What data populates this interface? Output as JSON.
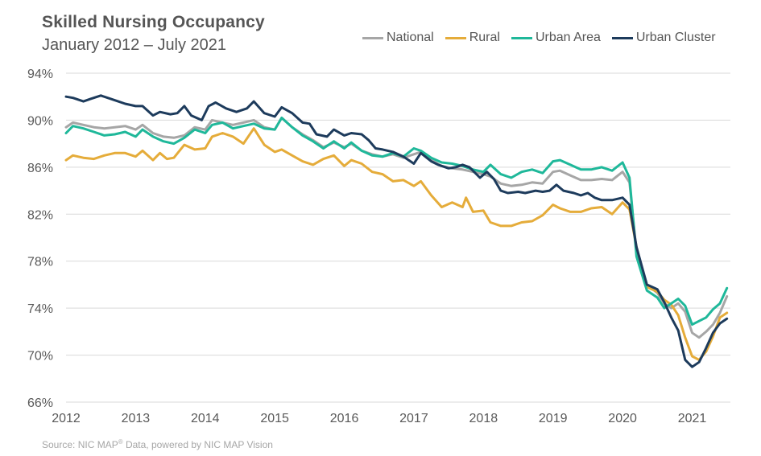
{
  "header": {
    "title": "Skilled Nursing Occupancy",
    "subtitle": "January 2012 – July 2021"
  },
  "source": {
    "prefix": "Source: NIC MAP",
    "sup": "®",
    "suffix": " Data, powered by NIC MAP Vision"
  },
  "chart_data": {
    "type": "line",
    "title": "Skilled Nursing Occupancy",
    "subtitle": "January 2012 – July 2021",
    "x_ticks": [
      "2012",
      "2013",
      "2014",
      "2015",
      "2016",
      "2017",
      "2018",
      "2019",
      "2020",
      "2021"
    ],
    "y_ticks": [
      "66%",
      "70%",
      "74%",
      "78%",
      "82%",
      "86%",
      "90%",
      "94%"
    ],
    "ylim": [
      66,
      94
    ],
    "xlim": [
      2012.0,
      2021.55
    ],
    "grid": "horizontal",
    "legend_position": "top-right",
    "series": [
      {
        "name": "National",
        "color": "#a6a6a6",
        "points": [
          [
            2012.0,
            89.4
          ],
          [
            2012.1,
            89.8
          ],
          [
            2012.25,
            89.6
          ],
          [
            2012.4,
            89.4
          ],
          [
            2012.55,
            89.3
          ],
          [
            2012.7,
            89.4
          ],
          [
            2012.85,
            89.5
          ],
          [
            2013.0,
            89.2
          ],
          [
            2013.1,
            89.6
          ],
          [
            2013.25,
            88.9
          ],
          [
            2013.4,
            88.6
          ],
          [
            2013.55,
            88.5
          ],
          [
            2013.7,
            88.7
          ],
          [
            2013.85,
            89.4
          ],
          [
            2014.0,
            89.2
          ],
          [
            2014.1,
            90.0
          ],
          [
            2014.25,
            89.8
          ],
          [
            2014.4,
            89.6
          ],
          [
            2014.55,
            89.8
          ],
          [
            2014.7,
            90.0
          ],
          [
            2014.85,
            89.4
          ],
          [
            2015.0,
            89.2
          ],
          [
            2015.1,
            90.2
          ],
          [
            2015.25,
            89.4
          ],
          [
            2015.4,
            88.8
          ],
          [
            2015.55,
            88.3
          ],
          [
            2015.7,
            87.7
          ],
          [
            2015.85,
            88.1
          ],
          [
            2016.0,
            87.7
          ],
          [
            2016.1,
            88.0
          ],
          [
            2016.25,
            87.4
          ],
          [
            2016.4,
            87.1
          ],
          [
            2016.55,
            86.9
          ],
          [
            2016.7,
            87.1
          ],
          [
            2016.85,
            86.8
          ],
          [
            2017.0,
            87.1
          ],
          [
            2017.1,
            87.3
          ],
          [
            2017.25,
            86.6
          ],
          [
            2017.4,
            86.1
          ],
          [
            2017.55,
            85.9
          ],
          [
            2017.7,
            85.8
          ],
          [
            2017.85,
            85.6
          ],
          [
            2018.0,
            85.4
          ],
          [
            2018.1,
            85.2
          ],
          [
            2018.25,
            84.6
          ],
          [
            2018.4,
            84.4
          ],
          [
            2018.55,
            84.5
          ],
          [
            2018.7,
            84.7
          ],
          [
            2018.85,
            84.6
          ],
          [
            2019.0,
            85.6
          ],
          [
            2019.1,
            85.7
          ],
          [
            2019.25,
            85.3
          ],
          [
            2019.4,
            84.9
          ],
          [
            2019.55,
            84.9
          ],
          [
            2019.7,
            85.0
          ],
          [
            2019.85,
            84.9
          ],
          [
            2020.0,
            85.6
          ],
          [
            2020.1,
            84.7
          ],
          [
            2020.2,
            78.8
          ],
          [
            2020.35,
            76.0
          ],
          [
            2020.5,
            75.3
          ],
          [
            2020.6,
            74.4
          ],
          [
            2020.7,
            74.0
          ],
          [
            2020.8,
            74.4
          ],
          [
            2020.9,
            73.7
          ],
          [
            2021.0,
            71.9
          ],
          [
            2021.1,
            71.5
          ],
          [
            2021.2,
            72.0
          ],
          [
            2021.3,
            72.6
          ],
          [
            2021.4,
            73.6
          ],
          [
            2021.5,
            75.0
          ]
        ]
      },
      {
        "name": "Rural",
        "color": "#e5ac3a",
        "points": [
          [
            2012.0,
            86.6
          ],
          [
            2012.1,
            87.0
          ],
          [
            2012.25,
            86.8
          ],
          [
            2012.4,
            86.7
          ],
          [
            2012.55,
            87.0
          ],
          [
            2012.7,
            87.2
          ],
          [
            2012.85,
            87.2
          ],
          [
            2013.0,
            86.9
          ],
          [
            2013.1,
            87.4
          ],
          [
            2013.25,
            86.6
          ],
          [
            2013.35,
            87.2
          ],
          [
            2013.45,
            86.7
          ],
          [
            2013.55,
            86.8
          ],
          [
            2013.7,
            87.9
          ],
          [
            2013.85,
            87.5
          ],
          [
            2014.0,
            87.6
          ],
          [
            2014.1,
            88.6
          ],
          [
            2014.25,
            88.9
          ],
          [
            2014.4,
            88.6
          ],
          [
            2014.55,
            88.0
          ],
          [
            2014.7,
            89.3
          ],
          [
            2014.85,
            87.9
          ],
          [
            2015.0,
            87.3
          ],
          [
            2015.1,
            87.5
          ],
          [
            2015.25,
            87.0
          ],
          [
            2015.4,
            86.5
          ],
          [
            2015.55,
            86.2
          ],
          [
            2015.7,
            86.7
          ],
          [
            2015.85,
            87.0
          ],
          [
            2016.0,
            86.1
          ],
          [
            2016.1,
            86.6
          ],
          [
            2016.25,
            86.3
          ],
          [
            2016.4,
            85.6
          ],
          [
            2016.55,
            85.4
          ],
          [
            2016.7,
            84.8
          ],
          [
            2016.85,
            84.9
          ],
          [
            2017.0,
            84.4
          ],
          [
            2017.1,
            84.8
          ],
          [
            2017.25,
            83.6
          ],
          [
            2017.4,
            82.6
          ],
          [
            2017.55,
            83.0
          ],
          [
            2017.7,
            82.6
          ],
          [
            2017.75,
            83.4
          ],
          [
            2017.85,
            82.2
          ],
          [
            2018.0,
            82.3
          ],
          [
            2018.1,
            81.3
          ],
          [
            2018.25,
            81.0
          ],
          [
            2018.4,
            81.0
          ],
          [
            2018.55,
            81.3
          ],
          [
            2018.7,
            81.4
          ],
          [
            2018.85,
            81.9
          ],
          [
            2019.0,
            82.8
          ],
          [
            2019.1,
            82.5
          ],
          [
            2019.25,
            82.2
          ],
          [
            2019.4,
            82.2
          ],
          [
            2019.55,
            82.5
          ],
          [
            2019.7,
            82.6
          ],
          [
            2019.85,
            82.0
          ],
          [
            2020.0,
            83.0
          ],
          [
            2020.1,
            82.4
          ],
          [
            2020.2,
            79.2
          ],
          [
            2020.35,
            75.8
          ],
          [
            2020.5,
            75.4
          ],
          [
            2020.6,
            74.7
          ],
          [
            2020.7,
            74.3
          ],
          [
            2020.8,
            73.4
          ],
          [
            2020.9,
            71.5
          ],
          [
            2021.0,
            69.9
          ],
          [
            2021.1,
            69.6
          ],
          [
            2021.2,
            70.3
          ],
          [
            2021.3,
            71.6
          ],
          [
            2021.4,
            73.2
          ],
          [
            2021.5,
            73.6
          ]
        ]
      },
      {
        "name": "Urban Area",
        "color": "#1fb89a",
        "points": [
          [
            2012.0,
            88.9
          ],
          [
            2012.1,
            89.5
          ],
          [
            2012.25,
            89.3
          ],
          [
            2012.4,
            89.0
          ],
          [
            2012.55,
            88.7
          ],
          [
            2012.7,
            88.8
          ],
          [
            2012.85,
            89.0
          ],
          [
            2013.0,
            88.6
          ],
          [
            2013.1,
            89.2
          ],
          [
            2013.25,
            88.6
          ],
          [
            2013.4,
            88.2
          ],
          [
            2013.55,
            88.0
          ],
          [
            2013.7,
            88.5
          ],
          [
            2013.85,
            89.2
          ],
          [
            2014.0,
            88.9
          ],
          [
            2014.1,
            89.6
          ],
          [
            2014.25,
            89.8
          ],
          [
            2014.4,
            89.3
          ],
          [
            2014.55,
            89.5
          ],
          [
            2014.7,
            89.7
          ],
          [
            2014.85,
            89.3
          ],
          [
            2015.0,
            89.2
          ],
          [
            2015.1,
            90.2
          ],
          [
            2015.25,
            89.4
          ],
          [
            2015.4,
            88.7
          ],
          [
            2015.55,
            88.2
          ],
          [
            2015.7,
            87.6
          ],
          [
            2015.85,
            88.2
          ],
          [
            2016.0,
            87.6
          ],
          [
            2016.1,
            88.1
          ],
          [
            2016.25,
            87.4
          ],
          [
            2016.4,
            87.0
          ],
          [
            2016.55,
            86.9
          ],
          [
            2016.7,
            87.2
          ],
          [
            2016.85,
            86.9
          ],
          [
            2017.0,
            87.6
          ],
          [
            2017.1,
            87.4
          ],
          [
            2017.25,
            86.8
          ],
          [
            2017.4,
            86.4
          ],
          [
            2017.55,
            86.3
          ],
          [
            2017.7,
            86.1
          ],
          [
            2017.85,
            85.8
          ],
          [
            2018.0,
            85.6
          ],
          [
            2018.1,
            86.2
          ],
          [
            2018.25,
            85.4
          ],
          [
            2018.4,
            85.1
          ],
          [
            2018.55,
            85.6
          ],
          [
            2018.7,
            85.8
          ],
          [
            2018.85,
            85.5
          ],
          [
            2019.0,
            86.5
          ],
          [
            2019.1,
            86.6
          ],
          [
            2019.25,
            86.2
          ],
          [
            2019.4,
            85.8
          ],
          [
            2019.55,
            85.8
          ],
          [
            2019.7,
            86.0
          ],
          [
            2019.85,
            85.7
          ],
          [
            2020.0,
            86.4
          ],
          [
            2020.1,
            85.1
          ],
          [
            2020.2,
            78.4
          ],
          [
            2020.35,
            75.5
          ],
          [
            2020.5,
            74.9
          ],
          [
            2020.6,
            74.0
          ],
          [
            2020.7,
            74.4
          ],
          [
            2020.8,
            74.8
          ],
          [
            2020.9,
            74.2
          ],
          [
            2021.0,
            72.6
          ],
          [
            2021.1,
            72.9
          ],
          [
            2021.2,
            73.2
          ],
          [
            2021.3,
            73.9
          ],
          [
            2021.4,
            74.4
          ],
          [
            2021.5,
            75.7
          ]
        ]
      },
      {
        "name": "Urban Cluster",
        "color": "#1d3b5c",
        "points": [
          [
            2012.0,
            92.0
          ],
          [
            2012.1,
            91.9
          ],
          [
            2012.25,
            91.6
          ],
          [
            2012.35,
            91.8
          ],
          [
            2012.5,
            92.1
          ],
          [
            2012.6,
            91.9
          ],
          [
            2012.75,
            91.6
          ],
          [
            2012.85,
            91.4
          ],
          [
            2013.0,
            91.2
          ],
          [
            2013.1,
            91.2
          ],
          [
            2013.25,
            90.4
          ],
          [
            2013.35,
            90.7
          ],
          [
            2013.5,
            90.5
          ],
          [
            2013.6,
            90.6
          ],
          [
            2013.7,
            91.2
          ],
          [
            2013.8,
            90.4
          ],
          [
            2013.95,
            90.0
          ],
          [
            2014.05,
            91.2
          ],
          [
            2014.15,
            91.5
          ],
          [
            2014.3,
            91.0
          ],
          [
            2014.45,
            90.7
          ],
          [
            2014.6,
            91.0
          ],
          [
            2014.7,
            91.6
          ],
          [
            2014.85,
            90.6
          ],
          [
            2015.0,
            90.3
          ],
          [
            2015.1,
            91.1
          ],
          [
            2015.25,
            90.6
          ],
          [
            2015.4,
            89.8
          ],
          [
            2015.5,
            89.7
          ],
          [
            2015.6,
            88.8
          ],
          [
            2015.75,
            88.6
          ],
          [
            2015.85,
            89.2
          ],
          [
            2016.0,
            88.7
          ],
          [
            2016.1,
            88.9
          ],
          [
            2016.25,
            88.8
          ],
          [
            2016.35,
            88.3
          ],
          [
            2016.45,
            87.6
          ],
          [
            2016.55,
            87.5
          ],
          [
            2016.7,
            87.3
          ],
          [
            2016.85,
            86.9
          ],
          [
            2017.0,
            86.3
          ],
          [
            2017.1,
            87.2
          ],
          [
            2017.25,
            86.5
          ],
          [
            2017.35,
            86.2
          ],
          [
            2017.5,
            85.9
          ],
          [
            2017.6,
            86.0
          ],
          [
            2017.7,
            86.2
          ],
          [
            2017.8,
            86.0
          ],
          [
            2017.95,
            85.1
          ],
          [
            2018.05,
            85.6
          ],
          [
            2018.15,
            85.0
          ],
          [
            2018.25,
            84.0
          ],
          [
            2018.35,
            83.8
          ],
          [
            2018.5,
            83.9
          ],
          [
            2018.6,
            83.8
          ],
          [
            2018.75,
            84.0
          ],
          [
            2018.85,
            83.9
          ],
          [
            2018.95,
            84.0
          ],
          [
            2019.05,
            84.5
          ],
          [
            2019.15,
            84.0
          ],
          [
            2019.3,
            83.8
          ],
          [
            2019.4,
            83.6
          ],
          [
            2019.5,
            83.8
          ],
          [
            2019.6,
            83.4
          ],
          [
            2019.7,
            83.2
          ],
          [
            2019.85,
            83.2
          ],
          [
            2020.0,
            83.4
          ],
          [
            2020.1,
            82.8
          ],
          [
            2020.2,
            79.2
          ],
          [
            2020.35,
            76.0
          ],
          [
            2020.5,
            75.6
          ],
          [
            2020.6,
            74.5
          ],
          [
            2020.7,
            73.2
          ],
          [
            2020.8,
            72.1
          ],
          [
            2020.9,
            69.6
          ],
          [
            2021.0,
            69.0
          ],
          [
            2021.1,
            69.4
          ],
          [
            2021.2,
            70.6
          ],
          [
            2021.3,
            71.9
          ],
          [
            2021.4,
            72.7
          ],
          [
            2021.5,
            73.1
          ]
        ]
      }
    ]
  }
}
